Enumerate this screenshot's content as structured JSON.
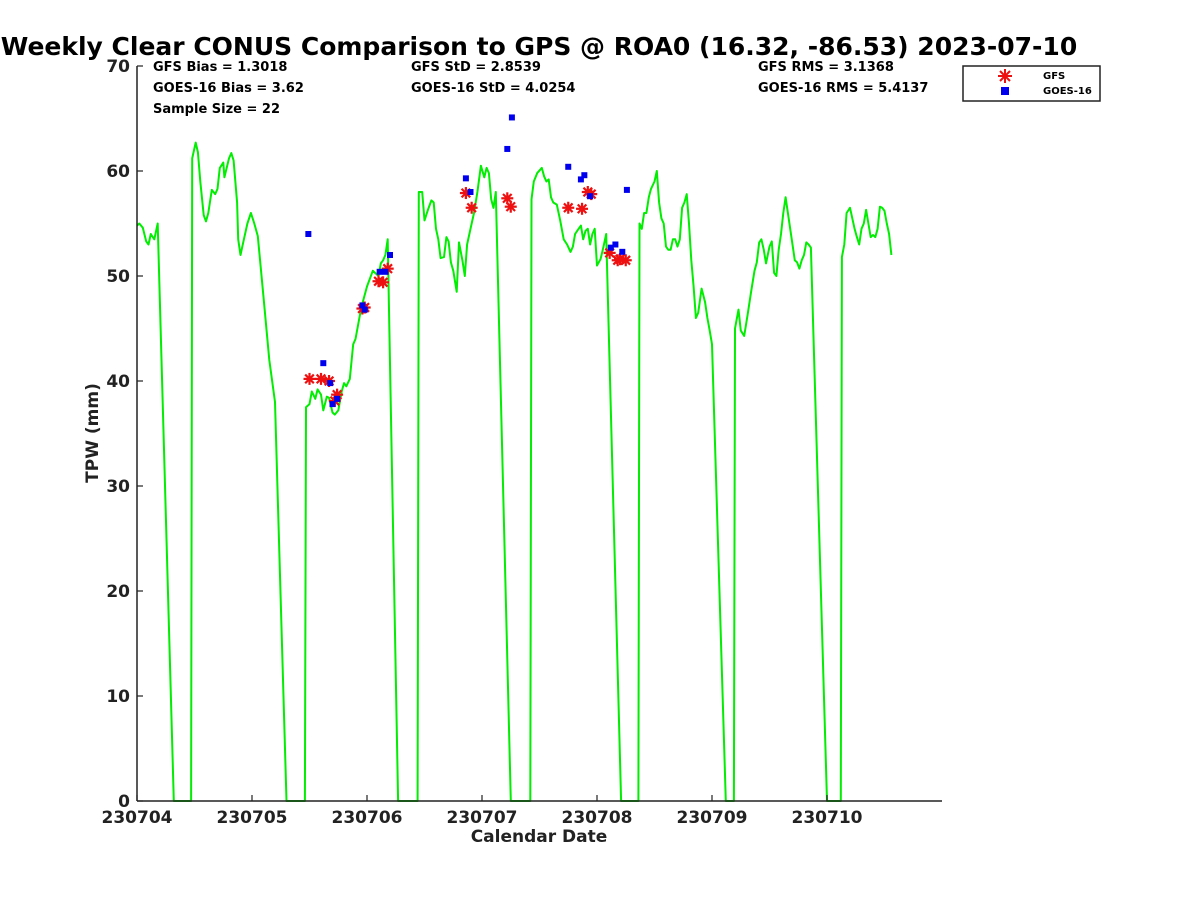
{
  "chart_data": {
    "type": "scatter",
    "title": "Weekly Clear CONUS Comparison to GPS @ ROA0 (16.32, -86.53) 2023-07-10",
    "xlabel": "Calendar Date",
    "ylabel": "TPW (mm)",
    "xlim": [
      0,
      7
    ],
    "ylim": [
      0,
      70
    ],
    "x_ticks": [
      {
        "pos": 0,
        "label": "230704"
      },
      {
        "pos": 1,
        "label": "230705"
      },
      {
        "pos": 2,
        "label": "230706"
      },
      {
        "pos": 3,
        "label": "230707"
      },
      {
        "pos": 4,
        "label": "230708"
      },
      {
        "pos": 5,
        "label": "230709"
      },
      {
        "pos": 6,
        "label": "230710"
      }
    ],
    "y_ticks": [
      0,
      10,
      20,
      30,
      40,
      50,
      60,
      70
    ],
    "grid": false,
    "legend_position": "top-right, outside plot",
    "stats": [
      {
        "text": "GFS Bias = 1.3018"
      },
      {
        "text": "GOES-16 Bias = 3.62"
      },
      {
        "text": "Sample Size = 22"
      },
      {
        "text": "GFS StD = 2.8539"
      },
      {
        "text": "GOES-16 StD = 4.0254"
      },
      {
        "text": "GFS RMS = 3.1368"
      },
      {
        "text": "GOES-16 RMS = 5.4137"
      }
    ],
    "series": [
      {
        "name": "GPS",
        "kind": "line",
        "color": "#00ee00",
        "points": [
          [
            0.0,
            54.8
          ],
          [
            0.02,
            55.0
          ],
          [
            0.05,
            54.6
          ],
          [
            0.08,
            53.3
          ],
          [
            0.1,
            53.0
          ],
          [
            0.12,
            54.0
          ],
          [
            0.15,
            53.5
          ],
          [
            0.18,
            55.0
          ],
          [
            0.32,
            0
          ],
          [
            0.47,
            0
          ],
          [
            0.48,
            61.2
          ],
          [
            0.51,
            62.7
          ],
          [
            0.53,
            61.8
          ],
          [
            0.55,
            59.0
          ],
          [
            0.58,
            55.8
          ],
          [
            0.6,
            55.2
          ],
          [
            0.62,
            56.0
          ],
          [
            0.65,
            58.2
          ],
          [
            0.68,
            57.8
          ],
          [
            0.7,
            58.3
          ],
          [
            0.72,
            60.3
          ],
          [
            0.75,
            60.8
          ],
          [
            0.76,
            59.4
          ],
          [
            0.8,
            61.2
          ],
          [
            0.82,
            61.7
          ],
          [
            0.84,
            61.0
          ],
          [
            0.87,
            57.0
          ],
          [
            0.88,
            53.5
          ],
          [
            0.9,
            52.0
          ],
          [
            0.93,
            53.5
          ],
          [
            0.96,
            55.0
          ],
          [
            0.99,
            56.0
          ],
          [
            1.02,
            55.0
          ],
          [
            1.05,
            53.8
          ],
          [
            1.1,
            48.0
          ],
          [
            1.15,
            42.0
          ],
          [
            1.2,
            38.0
          ],
          [
            1.3,
            0
          ],
          [
            1.46,
            0
          ],
          [
            1.47,
            37.5
          ],
          [
            1.5,
            37.8
          ],
          [
            1.52,
            39.0
          ],
          [
            1.55,
            38.3
          ],
          [
            1.57,
            39.2
          ],
          [
            1.6,
            38.7
          ],
          [
            1.62,
            37.2
          ],
          [
            1.65,
            38.5
          ],
          [
            1.67,
            38.4
          ],
          [
            1.7,
            37.0
          ],
          [
            1.72,
            36.8
          ],
          [
            1.75,
            37.2
          ],
          [
            1.78,
            39.0
          ],
          [
            1.8,
            39.8
          ],
          [
            1.82,
            39.5
          ],
          [
            1.85,
            40.2
          ],
          [
            1.88,
            43.5
          ],
          [
            1.9,
            44.0
          ],
          [
            1.95,
            47.0
          ],
          [
            2.0,
            49.0
          ],
          [
            2.05,
            50.5
          ],
          [
            2.1,
            50.0
          ],
          [
            2.12,
            51.2
          ],
          [
            2.14,
            51.5
          ],
          [
            2.16,
            52.0
          ],
          [
            2.18,
            53.5
          ],
          [
            2.27,
            0
          ],
          [
            2.44,
            0
          ],
          [
            2.45,
            58.0
          ],
          [
            2.48,
            58.0
          ],
          [
            2.5,
            55.3
          ],
          [
            2.53,
            56.3
          ],
          [
            2.56,
            57.2
          ],
          [
            2.58,
            57.0
          ],
          [
            2.6,
            54.5
          ],
          [
            2.62,
            53.5
          ],
          [
            2.64,
            51.7
          ],
          [
            2.67,
            51.8
          ],
          [
            2.69,
            53.7
          ],
          [
            2.71,
            53.3
          ],
          [
            2.73,
            51.3
          ],
          [
            2.75,
            50.5
          ],
          [
            2.78,
            48.5
          ],
          [
            2.8,
            53.2
          ],
          [
            2.83,
            51.5
          ],
          [
            2.85,
            50.0
          ],
          [
            2.87,
            53.0
          ],
          [
            2.9,
            54.5
          ],
          [
            2.93,
            56.0
          ],
          [
            2.96,
            58.0
          ],
          [
            2.99,
            60.5
          ],
          [
            3.02,
            59.4
          ],
          [
            3.04,
            60.3
          ],
          [
            3.06,
            59.8
          ],
          [
            3.08,
            57.3
          ],
          [
            3.1,
            56.5
          ],
          [
            3.12,
            58.0
          ],
          [
            3.25,
            0
          ],
          [
            3.42,
            0
          ],
          [
            3.43,
            57.3
          ],
          [
            3.45,
            59.0
          ],
          [
            3.48,
            59.8
          ],
          [
            3.52,
            60.3
          ],
          [
            3.54,
            59.5
          ],
          [
            3.56,
            59.0
          ],
          [
            3.58,
            59.2
          ],
          [
            3.6,
            57.5
          ],
          [
            3.62,
            57.0
          ],
          [
            3.65,
            56.8
          ],
          [
            3.68,
            55.3
          ],
          [
            3.71,
            53.5
          ],
          [
            3.74,
            53.0
          ],
          [
            3.77,
            52.3
          ],
          [
            3.79,
            52.8
          ],
          [
            3.81,
            54.0
          ],
          [
            3.84,
            54.5
          ],
          [
            3.86,
            54.8
          ],
          [
            3.88,
            53.5
          ],
          [
            3.9,
            54.3
          ],
          [
            3.92,
            54.5
          ],
          [
            3.94,
            53.0
          ],
          [
            3.96,
            54.0
          ],
          [
            3.98,
            54.5
          ],
          [
            4.0,
            51.0
          ],
          [
            4.03,
            51.6
          ],
          [
            4.05,
            52.5
          ],
          [
            4.08,
            54.0
          ],
          [
            4.21,
            0
          ],
          [
            4.36,
            0
          ],
          [
            4.37,
            55.0
          ],
          [
            4.39,
            54.5
          ],
          [
            4.41,
            56.0
          ],
          [
            4.43,
            56.0
          ],
          [
            4.45,
            57.5
          ],
          [
            4.47,
            58.3
          ],
          [
            4.5,
            59.0
          ],
          [
            4.52,
            60.0
          ],
          [
            4.54,
            57.0
          ],
          [
            4.56,
            55.5
          ],
          [
            4.58,
            55.0
          ],
          [
            4.6,
            52.8
          ],
          [
            4.62,
            52.5
          ],
          [
            4.64,
            52.5
          ],
          [
            4.66,
            53.5
          ],
          [
            4.68,
            53.5
          ],
          [
            4.7,
            52.8
          ],
          [
            4.72,
            53.5
          ],
          [
            4.74,
            56.5
          ],
          [
            4.76,
            57.0
          ],
          [
            4.78,
            57.8
          ],
          [
            4.8,
            55.0
          ],
          [
            4.82,
            51.5
          ],
          [
            4.84,
            49.0
          ],
          [
            4.86,
            46.0
          ],
          [
            4.88,
            46.5
          ],
          [
            4.91,
            48.8
          ],
          [
            4.94,
            47.5
          ],
          [
            4.96,
            46.0
          ],
          [
            4.98,
            44.8
          ],
          [
            5.0,
            43.5
          ],
          [
            5.12,
            0
          ],
          [
            5.19,
            0
          ],
          [
            5.2,
            45.0
          ],
          [
            5.23,
            46.8
          ],
          [
            5.25,
            44.8
          ],
          [
            5.28,
            44.3
          ],
          [
            5.31,
            46.3
          ],
          [
            5.34,
            48.5
          ],
          [
            5.37,
            50.5
          ],
          [
            5.39,
            51.3
          ],
          [
            5.41,
            53.2
          ],
          [
            5.43,
            53.5
          ],
          [
            5.45,
            52.5
          ],
          [
            5.47,
            51.2
          ],
          [
            5.5,
            52.8
          ],
          [
            5.52,
            53.3
          ],
          [
            5.54,
            50.3
          ],
          [
            5.56,
            50.0
          ],
          [
            5.58,
            52.5
          ],
          [
            5.6,
            54.0
          ],
          [
            5.62,
            56.0
          ],
          [
            5.64,
            57.5
          ],
          [
            5.66,
            56.0
          ],
          [
            5.68,
            54.5
          ],
          [
            5.7,
            53.0
          ],
          [
            5.72,
            51.5
          ],
          [
            5.74,
            51.3
          ],
          [
            5.76,
            50.7
          ],
          [
            5.78,
            51.5
          ],
          [
            5.8,
            52.0
          ],
          [
            5.82,
            53.2
          ],
          [
            5.84,
            53.0
          ],
          [
            5.86,
            52.7
          ],
          [
            6.0,
            0
          ],
          [
            6.12,
            0
          ],
          [
            6.13,
            51.8
          ],
          [
            6.15,
            53.0
          ],
          [
            6.17,
            56.0
          ],
          [
            6.2,
            56.5
          ],
          [
            6.22,
            55.5
          ],
          [
            6.24,
            54.5
          ],
          [
            6.26,
            53.7
          ],
          [
            6.28,
            53.0
          ],
          [
            6.3,
            54.5
          ],
          [
            6.32,
            55.0
          ],
          [
            6.34,
            56.3
          ],
          [
            6.36,
            55.0
          ],
          [
            6.38,
            53.7
          ],
          [
            6.4,
            53.9
          ],
          [
            6.42,
            53.7
          ],
          [
            6.44,
            54.5
          ],
          [
            6.46,
            56.6
          ],
          [
            6.48,
            56.5
          ],
          [
            6.5,
            56.2
          ],
          [
            6.52,
            55.0
          ],
          [
            6.54,
            54.0
          ],
          [
            6.56,
            52.0
          ]
        ]
      },
      {
        "name": "GFS",
        "kind": "marker",
        "marker": "asterisk",
        "color": "#ee1111",
        "points": [
          [
            1.5,
            40.2
          ],
          [
            1.6,
            40.2
          ],
          [
            1.67,
            40.0
          ],
          [
            1.72,
            38.1
          ],
          [
            1.74,
            38.7
          ],
          [
            1.96,
            46.9
          ],
          [
            1.98,
            47.0
          ],
          [
            2.1,
            49.5
          ],
          [
            2.14,
            49.4
          ],
          [
            2.18,
            50.7
          ],
          [
            2.86,
            57.9
          ],
          [
            2.91,
            56.5
          ],
          [
            3.22,
            57.4
          ],
          [
            3.25,
            56.6
          ],
          [
            3.75,
            56.5
          ],
          [
            3.87,
            56.4
          ],
          [
            3.92,
            58.0
          ],
          [
            3.95,
            57.8
          ],
          [
            4.11,
            52.2
          ],
          [
            4.18,
            51.5
          ],
          [
            4.2,
            51.6
          ],
          [
            4.25,
            51.5
          ]
        ]
      },
      {
        "name": "GOES-16",
        "kind": "marker",
        "marker": "square",
        "color": "#0000ee",
        "points": [
          [
            1.49,
            54.0
          ],
          [
            1.62,
            41.7
          ],
          [
            1.68,
            39.8
          ],
          [
            1.7,
            37.8
          ],
          [
            1.74,
            38.3
          ],
          [
            1.96,
            47.2
          ],
          [
            1.98,
            46.8
          ],
          [
            2.11,
            50.4
          ],
          [
            2.16,
            50.4
          ],
          [
            2.2,
            52.0
          ],
          [
            2.86,
            59.3
          ],
          [
            2.9,
            58.0
          ],
          [
            3.22,
            62.1
          ],
          [
            3.26,
            65.1
          ],
          [
            3.75,
            60.4
          ],
          [
            3.86,
            59.2
          ],
          [
            3.89,
            59.6
          ],
          [
            3.94,
            57.6
          ],
          [
            4.12,
            52.7
          ],
          [
            4.16,
            53.0
          ],
          [
            4.22,
            52.3
          ],
          [
            4.26,
            58.2
          ]
        ]
      }
    ]
  }
}
